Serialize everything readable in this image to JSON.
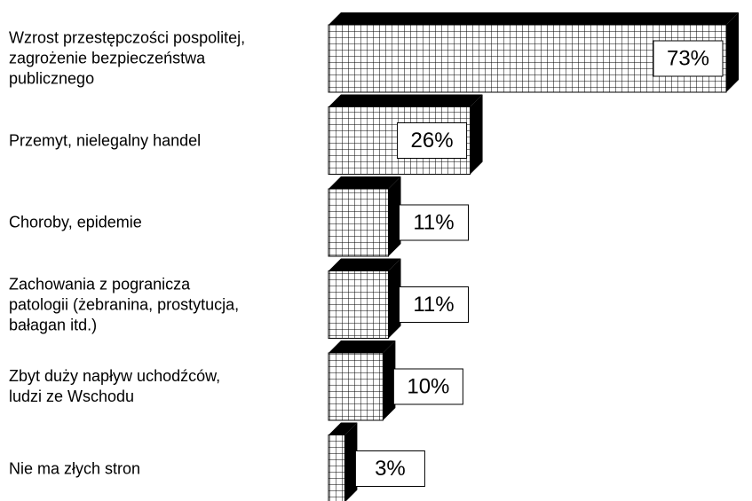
{
  "chart_data": {
    "type": "bar",
    "orientation": "horizontal",
    "categories": [
      "Wzrost przestępczości pospolitej,\nzagrożenie bezpieczeństwa\npublicznego",
      "Przemyt, nielegalny handel",
      "Choroby, epidemie",
      "Zachowania z pogranicza\npatologii (żebranina, prostytucja,\nbałagan itd.)",
      "Zbyt duży napływ uchodźców,\nludzi ze Wschodu",
      "Nie ma złych stron"
    ],
    "values": [
      73,
      26,
      11,
      11,
      10,
      3
    ],
    "value_labels": [
      "73%",
      "26%",
      "11%",
      "11%",
      "10%",
      "3%"
    ],
    "xlim": [
      0,
      73
    ],
    "color": "#000000"
  }
}
